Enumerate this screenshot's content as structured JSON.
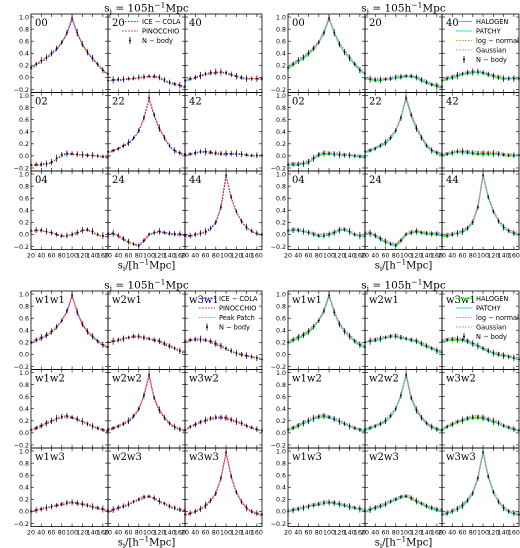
{
  "figure": {
    "panels_grid": [
      3,
      3
    ],
    "blocks": [
      {
        "title": "s_j = 105h^{-1}Mpc",
        "xlabel": "s_i/[h^{-1}Mpc]",
        "labels": [
          "00",
          "20",
          "40",
          "02",
          "22",
          "42",
          "04",
          "24",
          "44"
        ],
        "legend_panel": 1,
        "legend": [
          {
            "name": "ICE − COLA",
            "color": "#1f3fff",
            "style": "dotted"
          },
          {
            "name": "PINOCCHIO",
            "color": "#ff2a2a",
            "style": "dotted"
          },
          {
            "name": "N − body",
            "color": "#000000",
            "style": "errorbar"
          }
        ],
        "series_keys": [
          "ICE − COLA",
          "PINOCCHIO",
          "N − body"
        ]
      },
      {
        "title": "s_j = 105h^{-1}Mpc",
        "xlabel": "s_i/[h^{-1}Mpc]",
        "labels": [
          "00",
          "20",
          "40",
          "02",
          "22",
          "42",
          "04",
          "24",
          "44"
        ],
        "legend_panel": 2,
        "legend": [
          {
            "name": "HALOGEN",
            "color": "#40e040",
            "style": "solid"
          },
          {
            "name": "PATCHY",
            "color": "#40e0e8",
            "style": "solid"
          },
          {
            "name": "log − normal",
            "color": "#c0a040",
            "style": "dotted"
          },
          {
            "name": "Gaussian",
            "color": "#c080c0",
            "style": "dotted"
          },
          {
            "name": "N − body",
            "color": "#000000",
            "style": "errorbar"
          }
        ],
        "series_keys": [
          "HALOGEN",
          "PATCHY",
          "log − normal",
          "Gaussian",
          "N − body"
        ]
      },
      {
        "title": "s_j = 105h^{-1}Mpc",
        "xlabel": "s_i/[h^{-1}Mpc]",
        "labels": [
          "w1w1",
          "w2w1",
          "w3w1",
          "w1w2",
          "w2w2",
          "w3w2",
          "w1w3",
          "w2w3",
          "w3w3"
        ],
        "legend_panel": 2,
        "legend": [
          {
            "name": "ICE − COLA",
            "color": "#1f3fff",
            "style": "dotted"
          },
          {
            "name": "PINOCCHIO",
            "color": "#ff2a2a",
            "style": "dotted"
          },
          {
            "name": "Peak Patch",
            "color": "#ff8080",
            "style": "dotted"
          },
          {
            "name": "N − body",
            "color": "#000000",
            "style": "errorbar"
          }
        ],
        "series_keys": [
          "ICE − COLA",
          "PINOCCHIO",
          "Peak Patch",
          "N − body"
        ]
      },
      {
        "title": "s_j = 105h^{-1}Mpc",
        "xlabel": "s_i/[h^{-1}Mpc]",
        "labels": [
          "w1w1",
          "w2w1",
          "w3w1",
          "w1w2",
          "w2w2",
          "w3w2",
          "w1w3",
          "w2w3",
          "w3w3"
        ],
        "legend_panel": 2,
        "legend": [
          {
            "name": "HALOGEN",
            "color": "#40e040",
            "style": "solid"
          },
          {
            "name": "PATCHY",
            "color": "#40e0e8",
            "style": "solid"
          },
          {
            "name": "log − normal",
            "color": "#c0a040",
            "style": "dotted"
          },
          {
            "name": "Gaussian",
            "color": "#c080c0",
            "style": "dotted"
          },
          {
            "name": "N − body",
            "color": "#000000",
            "style": "errorbar"
          }
        ],
        "series_keys": [
          "HALOGEN",
          "PATCHY",
          "log − normal",
          "Gaussian",
          "N − body"
        ]
      }
    ]
  },
  "chart_data": {
    "type": "line",
    "x": [
      20,
      30,
      40,
      50,
      60,
      70,
      80,
      90,
      100,
      110,
      120,
      130,
      140,
      150,
      160,
      170
    ],
    "xlim": [
      20,
      170
    ],
    "ylim": [
      -0.25,
      1.05
    ],
    "xticks": [
      20,
      40,
      60,
      80,
      100,
      120,
      140,
      160
    ],
    "xtick_labels": [
      "20",
      "40",
      "60",
      "80",
      "100",
      "120",
      "140",
      "160"
    ],
    "yticks": [
      -0.2,
      0.0,
      0.2,
      0.4,
      0.6,
      0.8,
      1.0
    ],
    "ytick_labels": [
      "−0.2",
      "0.0",
      "0.2",
      "0.4",
      "0.6",
      "0.8",
      "1.0"
    ],
    "blocks": [
      [
        {
          "label": "00",
          "y": [
            0.16,
            0.22,
            0.28,
            0.33,
            0.4,
            0.48,
            0.58,
            0.74,
            0.98,
            0.74,
            0.55,
            0.42,
            0.32,
            0.22,
            0.12,
            0.06
          ]
        },
        {
          "label": "20",
          "y": [
            -0.05,
            -0.04,
            -0.03,
            -0.03,
            -0.02,
            -0.01,
            0.0,
            0.01,
            0.02,
            0.02,
            0.0,
            -0.04,
            -0.08,
            -0.11,
            -0.13,
            -0.15
          ]
        },
        {
          "label": "40",
          "y": [
            -0.05,
            -0.02,
            0.0,
            0.03,
            0.06,
            0.08,
            0.09,
            0.09,
            0.08,
            0.05,
            0.02,
            0.0,
            -0.02,
            -0.02,
            -0.02,
            -0.02
          ]
        },
        {
          "label": "02",
          "y": [
            -0.15,
            -0.14,
            -0.14,
            -0.13,
            -0.1,
            -0.04,
            0.02,
            0.04,
            0.04,
            0.03,
            0.02,
            0.01,
            0.01,
            0.0,
            -0.01,
            -0.02
          ]
        },
        {
          "label": "22",
          "y": [
            0.07,
            0.09,
            0.12,
            0.17,
            0.22,
            0.3,
            0.42,
            0.63,
            0.96,
            0.68,
            0.46,
            0.3,
            0.17,
            0.09,
            0.05,
            0.03
          ]
        },
        {
          "label": "42",
          "y": [
            0.02,
            0.03,
            0.05,
            0.07,
            0.07,
            0.06,
            0.05,
            0.04,
            0.04,
            0.04,
            0.04,
            0.03,
            0.02,
            0.01,
            0.01,
            0.01
          ]
        },
        {
          "label": "04",
          "y": [
            0.06,
            0.07,
            0.07,
            0.05,
            0.03,
            0.0,
            -0.02,
            -0.02,
            0.0,
            0.03,
            0.07,
            0.08,
            0.05,
            0.0,
            -0.02,
            -0.03
          ]
        },
        {
          "label": "24",
          "y": [
            0.02,
            0.02,
            -0.02,
            -0.07,
            -0.12,
            -0.16,
            -0.18,
            -0.1,
            0.0,
            0.03,
            0.05,
            0.03,
            0.02,
            0.01,
            0.01,
            0.0
          ]
        },
        {
          "label": "44",
          "y": [
            -0.02,
            -0.02,
            0.0,
            0.02,
            0.05,
            0.1,
            0.2,
            0.45,
            0.98,
            0.62,
            0.38,
            0.22,
            0.12,
            0.06,
            0.02,
            0.0
          ]
        }
      ],
      [
        {
          "label": "00",
          "y": [
            0.16,
            0.22,
            0.28,
            0.33,
            0.4,
            0.48,
            0.58,
            0.74,
            0.98,
            0.74,
            0.55,
            0.42,
            0.32,
            0.22,
            0.12,
            0.06
          ]
        },
        {
          "label": "20",
          "y": [
            -0.02,
            -0.03,
            -0.04,
            -0.04,
            -0.03,
            -0.02,
            0.0,
            0.01,
            0.02,
            0.02,
            0.0,
            -0.04,
            -0.08,
            -0.12,
            -0.14,
            -0.16
          ]
        },
        {
          "label": "40",
          "y": [
            -0.05,
            -0.02,
            0.0,
            0.03,
            0.06,
            0.08,
            0.09,
            0.09,
            0.08,
            0.05,
            0.02,
            0.0,
            -0.02,
            -0.02,
            -0.02,
            -0.02
          ]
        },
        {
          "label": "02",
          "y": [
            -0.15,
            -0.14,
            -0.14,
            -0.13,
            -0.1,
            -0.04,
            0.02,
            0.04,
            0.04,
            0.03,
            0.02,
            0.01,
            0.01,
            0.0,
            -0.01,
            -0.02
          ]
        },
        {
          "label": "22",
          "y": [
            0.07,
            0.09,
            0.12,
            0.17,
            0.22,
            0.3,
            0.42,
            0.63,
            0.96,
            0.68,
            0.46,
            0.3,
            0.17,
            0.09,
            0.05,
            0.03
          ]
        },
        {
          "label": "42",
          "y": [
            0.02,
            0.03,
            0.05,
            0.07,
            0.07,
            0.06,
            0.05,
            0.04,
            0.04,
            0.04,
            0.04,
            0.03,
            0.02,
            0.01,
            0.01,
            0.01
          ]
        },
        {
          "label": "04",
          "y": [
            0.06,
            0.07,
            0.07,
            0.05,
            0.03,
            0.0,
            -0.02,
            -0.02,
            0.0,
            0.03,
            0.07,
            0.08,
            0.05,
            0.0,
            -0.02,
            -0.03
          ]
        },
        {
          "label": "24",
          "y": [
            0.02,
            0.02,
            -0.02,
            -0.07,
            -0.12,
            -0.16,
            -0.18,
            -0.1,
            0.0,
            0.03,
            0.05,
            0.03,
            0.02,
            0.01,
            0.01,
            0.0
          ]
        },
        {
          "label": "44",
          "y": [
            -0.02,
            -0.02,
            0.0,
            0.02,
            0.05,
            0.1,
            0.2,
            0.45,
            0.98,
            0.62,
            0.38,
            0.22,
            0.12,
            0.06,
            0.02,
            0.0
          ]
        }
      ],
      [
        {
          "label": "w1w1",
          "y": [
            0.2,
            0.24,
            0.28,
            0.32,
            0.38,
            0.46,
            0.56,
            0.72,
            0.98,
            0.7,
            0.5,
            0.38,
            0.3,
            0.22,
            0.16,
            0.12
          ]
        },
        {
          "label": "w2w1",
          "y": [
            0.2,
            0.22,
            0.24,
            0.26,
            0.28,
            0.3,
            0.3,
            0.28,
            0.26,
            0.24,
            0.22,
            0.18,
            0.14,
            0.1,
            0.06,
            0.04
          ]
        },
        {
          "label": "w3w1",
          "y": [
            0.22,
            0.24,
            0.25,
            0.25,
            0.24,
            0.22,
            0.18,
            0.14,
            0.1,
            0.06,
            0.02,
            0.0,
            -0.02,
            -0.04,
            -0.06,
            -0.08
          ]
        },
        {
          "label": "w1w2",
          "y": [
            0.05,
            0.08,
            0.12,
            0.16,
            0.2,
            0.24,
            0.27,
            0.28,
            0.26,
            0.23,
            0.19,
            0.15,
            0.11,
            0.08,
            0.05,
            0.03
          ]
        },
        {
          "label": "w2w2",
          "y": [
            0.06,
            0.08,
            0.11,
            0.15,
            0.2,
            0.28,
            0.4,
            0.62,
            0.96,
            0.58,
            0.38,
            0.25,
            0.16,
            0.1,
            0.06,
            0.04
          ]
        },
        {
          "label": "w3w2",
          "y": [
            0.05,
            0.1,
            0.14,
            0.18,
            0.21,
            0.24,
            0.26,
            0.26,
            0.25,
            0.22,
            0.19,
            0.16,
            0.12,
            0.09,
            0.06,
            0.04
          ]
        },
        {
          "label": "w1w3",
          "y": [
            0.0,
            0.02,
            0.04,
            0.06,
            0.08,
            0.1,
            0.12,
            0.14,
            0.15,
            0.14,
            0.12,
            0.1,
            0.08,
            0.06,
            0.04,
            0.02
          ]
        },
        {
          "label": "w2w3",
          "y": [
            0.0,
            0.03,
            0.06,
            0.09,
            0.12,
            0.16,
            0.2,
            0.24,
            0.25,
            0.22,
            0.17,
            0.13,
            0.09,
            0.06,
            0.03,
            0.02
          ]
        },
        {
          "label": "w3w3",
          "y": [
            -0.05,
            -0.03,
            0.0,
            0.04,
            0.1,
            0.18,
            0.3,
            0.55,
            0.98,
            0.58,
            0.32,
            0.16,
            0.06,
            0.0,
            -0.03,
            -0.05
          ]
        }
      ],
      [
        {
          "label": "w1w1",
          "y": [
            0.2,
            0.24,
            0.28,
            0.32,
            0.38,
            0.46,
            0.56,
            0.72,
            0.98,
            0.7,
            0.5,
            0.38,
            0.3,
            0.22,
            0.16,
            0.12
          ]
        },
        {
          "label": "w2w1",
          "y": [
            0.2,
            0.22,
            0.24,
            0.26,
            0.28,
            0.3,
            0.3,
            0.28,
            0.26,
            0.24,
            0.22,
            0.18,
            0.14,
            0.1,
            0.06,
            0.04
          ]
        },
        {
          "label": "w3w1",
          "y": [
            0.22,
            0.24,
            0.25,
            0.25,
            0.24,
            0.22,
            0.18,
            0.14,
            0.1,
            0.06,
            0.02,
            0.0,
            -0.02,
            -0.04,
            -0.06,
            -0.08
          ]
        },
        {
          "label": "w1w2",
          "y": [
            0.05,
            0.08,
            0.12,
            0.16,
            0.2,
            0.24,
            0.27,
            0.28,
            0.26,
            0.23,
            0.19,
            0.15,
            0.11,
            0.08,
            0.05,
            0.03
          ]
        },
        {
          "label": "w2w2",
          "y": [
            0.06,
            0.08,
            0.11,
            0.15,
            0.2,
            0.28,
            0.4,
            0.62,
            0.96,
            0.58,
            0.38,
            0.25,
            0.16,
            0.1,
            0.06,
            0.04
          ]
        },
        {
          "label": "w3w2",
          "y": [
            0.05,
            0.1,
            0.14,
            0.18,
            0.21,
            0.24,
            0.26,
            0.26,
            0.25,
            0.22,
            0.19,
            0.16,
            0.12,
            0.09,
            0.06,
            0.04
          ]
        },
        {
          "label": "w1w3",
          "y": [
            0.0,
            0.02,
            0.04,
            0.06,
            0.08,
            0.1,
            0.12,
            0.14,
            0.15,
            0.14,
            0.12,
            0.1,
            0.08,
            0.06,
            0.04,
            0.02
          ]
        },
        {
          "label": "w2w3",
          "y": [
            0.0,
            0.03,
            0.06,
            0.09,
            0.12,
            0.16,
            0.2,
            0.24,
            0.25,
            0.22,
            0.17,
            0.13,
            0.09,
            0.06,
            0.03,
            0.02
          ]
        },
        {
          "label": "w3w3",
          "y": [
            -0.05,
            -0.03,
            0.0,
            0.04,
            0.1,
            0.18,
            0.3,
            0.55,
            0.98,
            0.58,
            0.32,
            0.16,
            0.06,
            0.0,
            -0.03,
            -0.05
          ]
        }
      ]
    ]
  }
}
